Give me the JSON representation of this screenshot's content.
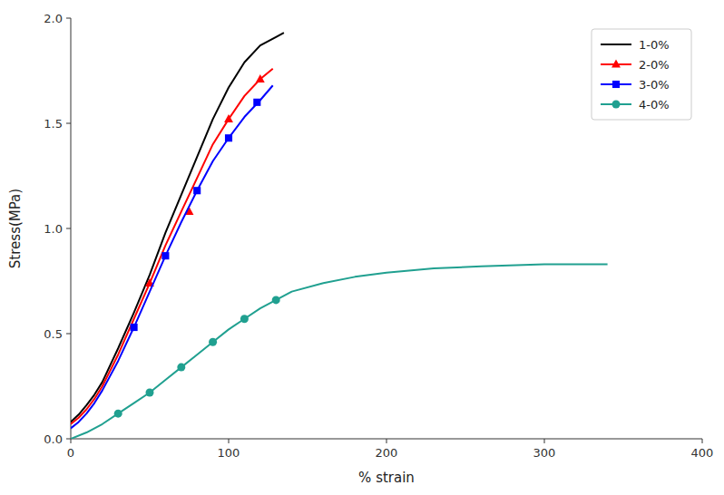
{
  "chart_data": {
    "type": "line",
    "xlabel": "% strain",
    "ylabel": "Stress(MPa)",
    "xlim": [
      0,
      400
    ],
    "ylim": [
      0,
      2.0
    ],
    "xticks": [
      0,
      100,
      200,
      300,
      400
    ],
    "yticks": [
      {
        "value": 0,
        "label": "0.0"
      },
      0.5,
      {
        "value": 1,
        "label": "1.0"
      },
      1.5,
      {
        "value": 2,
        "label": "2.0"
      }
    ],
    "grid": false,
    "legend": "upper right",
    "series": [
      {
        "name": "1-0%",
        "color": "#000000",
        "x": [
          0,
          5,
          10,
          15,
          20,
          30,
          40,
          50,
          60,
          70,
          80,
          90,
          100,
          110,
          120,
          130,
          135
        ],
        "values": [
          0.08,
          0.115,
          0.16,
          0.21,
          0.27,
          0.43,
          0.6,
          0.78,
          0.98,
          1.16,
          1.34,
          1.52,
          1.67,
          1.79,
          1.87,
          1.91,
          1.93
        ]
      },
      {
        "name": "2-0%",
        "color": "#ff0000",
        "marker": "triangle",
        "x": [
          0,
          5,
          10,
          15,
          20,
          30,
          40,
          50,
          60,
          70,
          80,
          90,
          100,
          110,
          120,
          128
        ],
        "values": [
          0.07,
          0.1,
          0.14,
          0.19,
          0.25,
          0.4,
          0.57,
          0.74,
          0.92,
          1.08,
          1.24,
          1.4,
          1.52,
          1.63,
          1.71,
          1.76
        ],
        "marker_x": [
          50,
          75,
          100,
          120
        ],
        "marker_values": [
          0.74,
          1.08,
          1.52,
          1.71
        ]
      },
      {
        "name": "3-0%",
        "color": "#0000ff",
        "marker": "square",
        "x": [
          0,
          5,
          10,
          15,
          20,
          30,
          40,
          50,
          60,
          70,
          80,
          90,
          100,
          110,
          120,
          128
        ],
        "values": [
          0.05,
          0.08,
          0.12,
          0.17,
          0.23,
          0.37,
          0.53,
          0.7,
          0.87,
          1.03,
          1.18,
          1.32,
          1.43,
          1.53,
          1.61,
          1.68
        ],
        "marker_x": [
          40,
          60,
          80,
          100,
          118
        ],
        "marker_values": [
          0.53,
          0.87,
          1.18,
          1.43,
          1.6
        ]
      },
      {
        "name": "4-0%",
        "color": "#20a090",
        "marker": "circle",
        "x": [
          0,
          10,
          20,
          30,
          40,
          50,
          60,
          70,
          80,
          90,
          100,
          110,
          120,
          130,
          140,
          160,
          180,
          200,
          230,
          260,
          300,
          340
        ],
        "values": [
          0.0,
          0.03,
          0.07,
          0.12,
          0.17,
          0.22,
          0.28,
          0.34,
          0.4,
          0.46,
          0.52,
          0.57,
          0.62,
          0.66,
          0.7,
          0.74,
          0.77,
          0.79,
          0.81,
          0.82,
          0.83,
          0.83
        ],
        "marker_x": [
          30,
          50,
          70,
          90,
          110,
          130
        ],
        "marker_values": [
          0.12,
          0.22,
          0.34,
          0.46,
          0.57,
          0.66
        ]
      }
    ]
  }
}
